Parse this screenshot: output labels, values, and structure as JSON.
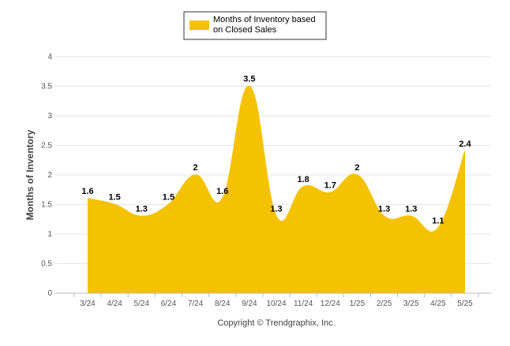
{
  "chart_data": {
    "type": "area",
    "title": "",
    "xlabel": "",
    "ylabel": "Months of Inventory",
    "categories": [
      "3/24",
      "4/24",
      "5/24",
      "6/24",
      "7/24",
      "8/24",
      "9/24",
      "10/24",
      "11/24",
      "12/24",
      "1/25",
      "2/25",
      "3/25",
      "4/25",
      "5/25"
    ],
    "series": [
      {
        "name": "Months of Inventory based on Closed Sales",
        "values": [
          1.6,
          1.5,
          1.3,
          1.5,
          2,
          1.6,
          3.5,
          1.3,
          1.8,
          1.7,
          2,
          1.3,
          1.3,
          1.1,
          2.4
        ],
        "labels": [
          "1.6",
          "1.5",
          "1.3",
          "1.5",
          "2",
          "1.6",
          "3.5",
          "1.3",
          "1.8",
          "1.7",
          "2",
          "1.3",
          "1.3",
          "1.1",
          "2.4"
        ],
        "color": "#F5C200"
      }
    ],
    "ylim": [
      0,
      4
    ],
    "yticks": [
      "0",
      "0.5",
      "1",
      "1.5",
      "2",
      "2.5",
      "3",
      "3.5",
      "4"
    ],
    "grid": true,
    "legend_position": "top-center",
    "legend": {
      "line1": "Months of Inventory based",
      "line2": "on Closed Sales"
    },
    "footer": "Copyright © Trendgraphix, Inc."
  }
}
